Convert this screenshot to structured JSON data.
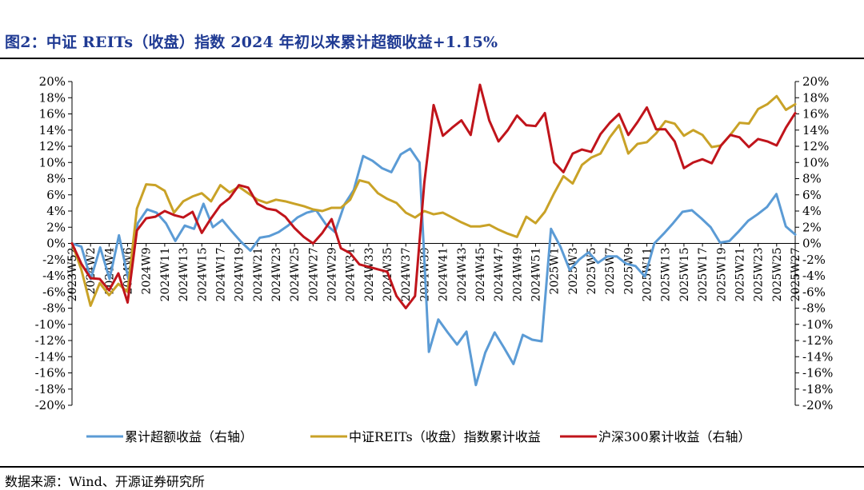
{
  "figure": {
    "title": "图2：中证 REITs（收盘）指数 2024 年初以来累计超额收益+1.15%",
    "source": "数据来源：Wind、开源证券研究所"
  },
  "chart_data": {
    "type": "line",
    "x_tick_labels": [
      "2023W52",
      "2024W2",
      "2024W4",
      "2024W6",
      "2024W9",
      "2024W11",
      "2024W13",
      "2024W15",
      "2024W17",
      "2024W19",
      "2024W21",
      "2024W23",
      "2024W25",
      "2024W27",
      "2024W29",
      "2024W31",
      "2024W33",
      "2024W35",
      "2024W37",
      "2024W39",
      "2024W41",
      "2024W43",
      "2024W45",
      "2024W47",
      "2024W49",
      "2024W51",
      "2025W1",
      "2025W3",
      "2025W5",
      "2025W7",
      "2025W9",
      "2025W11",
      "2025W13",
      "2025W15",
      "2025W17",
      "2025W19",
      "2025W21",
      "2025W23",
      "2025W25",
      "2025W27"
    ],
    "y_left": {
      "ticks": [
        "20%",
        "18%",
        "16%",
        "14%",
        "12%",
        "10%",
        "8%",
        "6%",
        "4%",
        "2%",
        "0%",
        "-2%",
        "-4%",
        "-6%",
        "-8%",
        "-10%",
        "-12%",
        "-14%",
        "-16%",
        "-18%",
        "-20%"
      ],
      "range": [
        -20,
        20
      ]
    },
    "y_right": {
      "ticks": [
        "20%",
        "18%",
        "16%",
        "14%",
        "12%",
        "10%",
        "8%",
        "6%",
        "4%",
        "2%",
        "0%",
        "-2%",
        "-4%",
        "-6%",
        "-8%",
        "-10%",
        "-12%",
        "-14%",
        "-16%",
        "-18%",
        "-20%"
      ],
      "range": [
        -20,
        20
      ]
    },
    "legend_position": "bottom",
    "series": [
      {
        "name": "累计超额收益（右轴）",
        "color": "#5b9bd5",
        "axis": "right",
        "values": [
          0,
          -0.4,
          -4.4,
          -0.5,
          -4.4,
          1,
          -4.4,
          2.5,
          4.2,
          3.8,
          2.5,
          0.3,
          2.2,
          1.8,
          4.9,
          2,
          2.9,
          1.5,
          0.2,
          -0.9,
          0.7,
          0.9,
          1.4,
          2.2,
          3.2,
          3.8,
          4.1,
          2.4,
          1.4,
          4.8,
          6.6,
          10.8,
          10.2,
          9.3,
          8.8,
          11,
          11.7,
          10,
          -13.4,
          -9.4,
          -11,
          -12.5,
          -10.9,
          -17.5,
          -13.5,
          -11,
          -12.9,
          -14.9,
          -11.3,
          -11.9,
          -12.1,
          1.8,
          -0.4,
          -3.3,
          -2,
          -1.1,
          -2.4,
          -1.6,
          -1.6,
          -2.5,
          -2.8,
          -4.1,
          0,
          1.2,
          2.5,
          3.9,
          4.1,
          3.1,
          2,
          0.1,
          0.3,
          1.5,
          2.8,
          3.6,
          4.5,
          6.1,
          2.1,
          1.1
        ]
      },
      {
        "name": "中证REITs（收盘）指数累计收益",
        "color": "#c9a227",
        "axis": "left",
        "values": [
          0,
          -3.2,
          -7.7,
          -4.9,
          -6.4,
          -5,
          -6,
          4.3,
          7.3,
          7.2,
          6.5,
          3.8,
          5.2,
          5.8,
          6.2,
          5.2,
          7.2,
          6.3,
          7,
          6.2,
          5.4,
          5,
          5.4,
          5.2,
          4.9,
          4.6,
          4.2,
          4,
          4.4,
          4.4,
          5.4,
          7.8,
          7.5,
          6.2,
          5.5,
          5,
          3.8,
          3.2,
          4,
          3.6,
          3.8,
          3.2,
          2.6,
          2.1,
          2.1,
          2.3,
          1.7,
          1.2,
          0.8,
          3.3,
          2.5,
          3.9,
          6.2,
          8.3,
          7.4,
          9.7,
          10.6,
          11.1,
          13.1,
          14.6,
          11.1,
          12.3,
          12.5,
          13.6,
          15.1,
          14.8,
          13.3,
          14,
          13.4,
          11.9,
          12.1,
          13.4,
          14.9,
          14.8,
          16.6,
          17.2,
          18.2,
          16.5,
          17.2
        ]
      },
      {
        "name": "沪深300累计收益（右轴）",
        "color": "#c0141b",
        "axis": "right",
        "values": [
          0,
          -2.5,
          -4.3,
          -4.4,
          -5.8,
          -3.7,
          -7.3,
          1.6,
          3.1,
          3.3,
          4,
          3.5,
          3.2,
          3.9,
          1.3,
          3.1,
          4.7,
          5.6,
          7.2,
          6.9,
          4.9,
          4.3,
          4.1,
          3.3,
          1.9,
          0.8,
          0,
          1.3,
          3,
          -0.6,
          -1.2,
          -2.6,
          -2.9,
          -3.2,
          -3.5,
          -6.5,
          -8,
          -6.5,
          7.5,
          17.1,
          13.3,
          14.3,
          15.2,
          13.4,
          19.6,
          15.2,
          12.6,
          14,
          15.8,
          14.6,
          14.5,
          16.1,
          10,
          8.8,
          11.1,
          11.6,
          11.3,
          13.5,
          14.9,
          16,
          13.4,
          15,
          16.8,
          14.1,
          14.1,
          12.6,
          9.3,
          10,
          10.4,
          9.9,
          12.1,
          13.4,
          13.1,
          11.9,
          12.9,
          12.6,
          12.1,
          14.3,
          16.1
        ]
      }
    ]
  }
}
